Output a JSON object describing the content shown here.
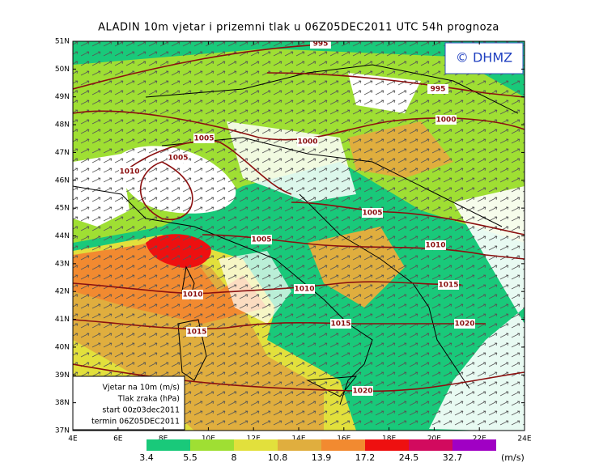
{
  "header": {
    "title": "ALADIN 10m vjetar i prizemni tlak u 06Z05DEC2011 UTC 54h prognoza"
  },
  "map": {
    "copyright": "© DHMZ",
    "lat_labels": [
      "51N",
      "50N",
      "49N",
      "48N",
      "47N",
      "46N",
      "45N",
      "44N",
      "43N",
      "42N",
      "41N",
      "40N",
      "39N",
      "38N",
      "37N"
    ],
    "lon_labels": [
      "4E",
      "6E",
      "8E",
      "10E",
      "12E",
      "14E",
      "16E",
      "18E",
      "20E",
      "22E",
      "24E"
    ],
    "isobar_labels": [
      "995",
      "995",
      "1000",
      "1005",
      "1005",
      "1000",
      "1010",
      "1005",
      "1005",
      "1010",
      "1015",
      "1010",
      "1010",
      "1015",
      "1015",
      "1020",
      "1020"
    ],
    "info_box": [
      "Vjetar na 10m (m/s)",
      "Tlak zraka (hPa)",
      "start 00z03dec2011",
      "termin 06Z05DEC2011"
    ]
  },
  "colorbar": {
    "colors": [
      "#19c97a",
      "#9fdf33",
      "#e2e03c",
      "#e0ae3e",
      "#f28a30",
      "#ee1010",
      "#d20a5e",
      "#a000c4"
    ],
    "labels": [
      "3.4",
      "5.5",
      "8",
      "10.8",
      "13.9",
      "17.2",
      "24.5",
      "32.7"
    ],
    "unit": "(m/s)"
  }
}
